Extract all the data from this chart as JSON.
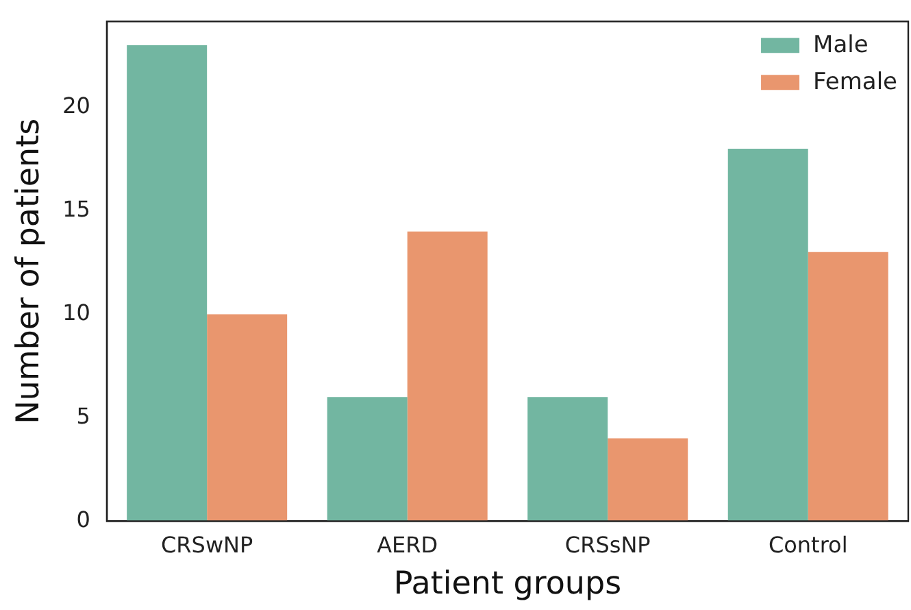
{
  "chart_data": {
    "type": "bar",
    "xlabel": "Patient groups",
    "ylabel": "Number of patients",
    "categories": [
      "CRSwNP",
      "AERD",
      "CRSsNP",
      "Control"
    ],
    "series": [
      {
        "name": "Male",
        "color": "#72b6a1",
        "values": [
          23,
          6,
          6,
          18
        ]
      },
      {
        "name": "Female",
        "color": "#e9966e",
        "values": [
          10,
          14,
          4,
          13
        ]
      }
    ],
    "ylim": [
      0,
      24.15
    ],
    "yticks": [
      0,
      5,
      10,
      15,
      20
    ],
    "grid": false,
    "legend": "top right"
  }
}
